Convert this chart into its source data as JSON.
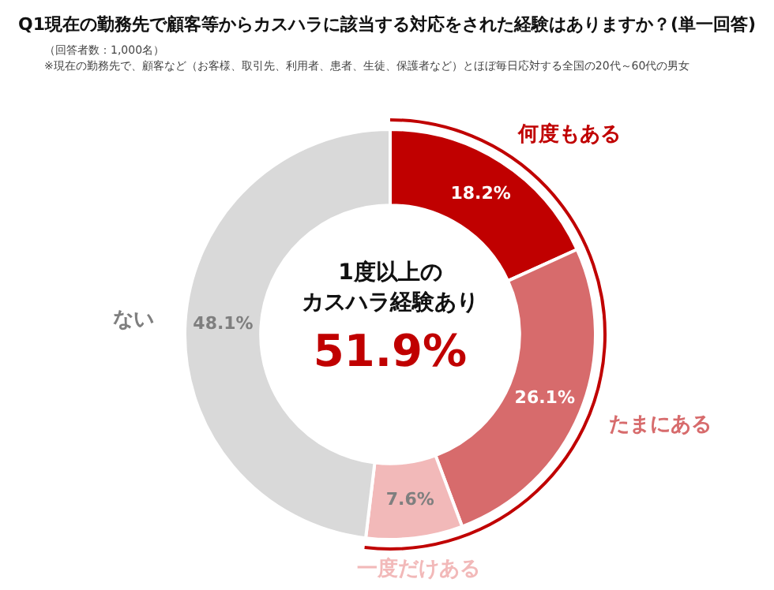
{
  "chart_data": {
    "type": "donut",
    "title": "Q1現在の勤務先で顧客等からカスハラに該当する対応をされた経験はありますか？(単一回答)",
    "subtitle": "（回答者数：1,000名）",
    "annotations": [
      "※現在の勤務先で、顧客など（お客様、取引先、利用者、患者、生徒、保護者など）とほぼ毎日応対する全国の20代～60代の男女",
      "1度以上の",
      "カスハラ経験あり",
      "51.9%"
    ],
    "categories": [
      "何度もある",
      "たまにある",
      "一度だけある",
      "ない"
    ],
    "values": [
      18.2,
      26.1,
      7.6,
      48.1
    ],
    "value_labels": [
      "18.2%",
      "26.1%",
      "7.6%",
      "48.1%"
    ],
    "colors": [
      "#c00000",
      "#d76b6c",
      "#f2b9b9",
      "#d9d9d9"
    ],
    "legend": false
  }
}
